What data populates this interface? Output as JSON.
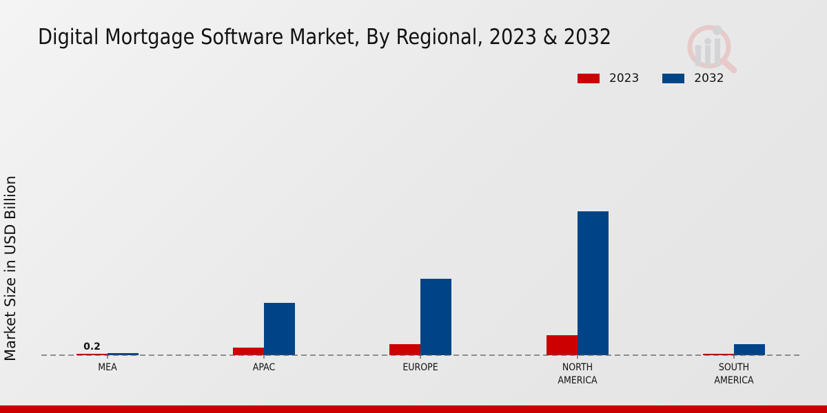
{
  "chart_data": {
    "type": "bar",
    "title": "Digital Mortgage Software Market, By Regional, 2023 & 2032",
    "xlabel": "",
    "ylabel": "Market Size in USD Billion",
    "categories": [
      "MEA",
      "APAC",
      "EUROPE",
      "NORTH AMERICA",
      "SOUTH AMERICA"
    ],
    "category_lines": [
      [
        "MEA"
      ],
      [
        "APAC"
      ],
      [
        "EUROPE"
      ],
      [
        "NORTH",
        "AMERICA"
      ],
      [
        "SOUTH",
        "AMERICA"
      ]
    ],
    "series": [
      {
        "name": "2023",
        "color": "#cc0000",
        "values": [
          0.2,
          1.1,
          1.6,
          2.9,
          0.2
        ]
      },
      {
        "name": "2032",
        "color": "#004488",
        "values": [
          0.3,
          7.6,
          11.1,
          20.9,
          1.6
        ]
      }
    ],
    "data_labels": [
      {
        "series": "2023",
        "category": "MEA",
        "text": "0.2"
      }
    ],
    "ylim": [
      0,
      22
    ],
    "grid": false,
    "legend_position": "top-right"
  },
  "colors": {
    "accent": "#cc0000",
    "series_2023": "#cc0000",
    "series_2032": "#004488"
  }
}
